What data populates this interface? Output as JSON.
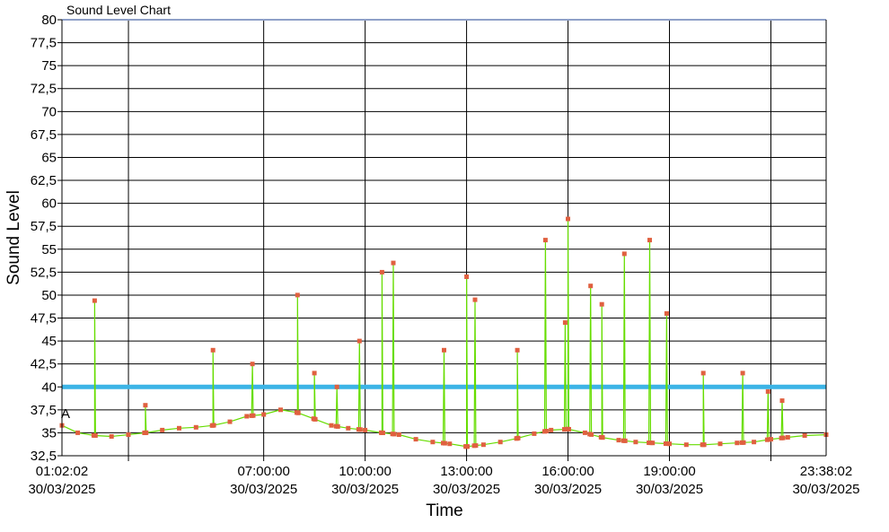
{
  "chart_data": {
    "type": "line",
    "title": "Sound Level Chart",
    "xlabel": "Time",
    "ylabel": "Sound Level",
    "ylim": [
      32.5,
      80
    ],
    "y_ticks": [
      "32,5",
      "35",
      "37,5",
      "40",
      "42,5",
      "45",
      "47,5",
      "50",
      "52,5",
      "55",
      "57,5",
      "60",
      "62,5",
      "65",
      "67,5",
      "70",
      "72,5",
      "75",
      "77,5",
      "80"
    ],
    "x_range": [
      "30/03/2025 01:02:02",
      "30/03/2025 23:38:02"
    ],
    "x_ticks": [
      {
        "time": "01:02:02",
        "date": "30/03/2025"
      },
      {
        "time": "07:00:00",
        "date": "30/03/2025"
      },
      {
        "time": "10:00:00",
        "date": "30/03/2025"
      },
      {
        "time": "13:00:00",
        "date": "30/03/2025"
      },
      {
        "time": "16:00:00",
        "date": "30/03/2025"
      },
      {
        "time": "19:00:00",
        "date": "30/03/2025"
      },
      {
        "time": "23:38:02",
        "date": "30/03/2025"
      }
    ],
    "grid": true,
    "threshold": {
      "value": 40,
      "color": "#3cb4e6"
    },
    "marker_label": "A",
    "series": [
      {
        "color_line": "#66dd00",
        "color_marker": "#e06040",
        "x": [
          "01:02",
          "01:30",
          "02:00",
          "02:30",
          "03:00",
          "03:30",
          "04:00",
          "04:30",
          "05:00",
          "05:30",
          "06:00",
          "06:30",
          "07:00",
          "07:30",
          "08:00",
          "08:30",
          "09:00",
          "09:30",
          "10:00",
          "10:30",
          "11:00",
          "11:30",
          "12:00",
          "12:30",
          "13:00",
          "13:30",
          "14:00",
          "14:30",
          "15:00",
          "15:30",
          "16:00",
          "16:30",
          "17:00",
          "17:30",
          "18:00",
          "18:30",
          "19:00",
          "19:30",
          "20:00",
          "20:30",
          "21:00",
          "21:30",
          "22:00",
          "22:30",
          "23:00",
          "23:38"
        ],
        "y": [
          35.8,
          35.0,
          34.7,
          34.6,
          34.8,
          35.0,
          35.3,
          35.5,
          35.6,
          35.8,
          36.2,
          36.8,
          37.0,
          37.5,
          37.2,
          36.5,
          35.8,
          35.5,
          35.3,
          35.0,
          34.8,
          34.3,
          34.0,
          33.8,
          33.5,
          33.7,
          34.0,
          34.4,
          34.9,
          35.3,
          35.4,
          35.0,
          34.5,
          34.2,
          34.0,
          33.9,
          33.8,
          33.7,
          33.7,
          33.8,
          33.9,
          34.0,
          34.3,
          34.5,
          34.7,
          34.8
        ],
        "spikes": [
          {
            "x": "02:00",
            "y": 49.4
          },
          {
            "x": "03:30",
            "y": 38.0
          },
          {
            "x": "05:30",
            "y": 44.0
          },
          {
            "x": "06:40",
            "y": 42.5
          },
          {
            "x": "08:00",
            "y": 50.0
          },
          {
            "x": "08:30",
            "y": 41.5
          },
          {
            "x": "09:10",
            "y": 40.0
          },
          {
            "x": "09:50",
            "y": 45.0
          },
          {
            "x": "10:30",
            "y": 52.5
          },
          {
            "x": "10:50",
            "y": 53.5
          },
          {
            "x": "12:20",
            "y": 44.0
          },
          {
            "x": "13:00",
            "y": 52.0
          },
          {
            "x": "13:15",
            "y": 49.5
          },
          {
            "x": "14:30",
            "y": 44.0
          },
          {
            "x": "15:20",
            "y": 56.0
          },
          {
            "x": "15:55",
            "y": 47.0
          },
          {
            "x": "16:00",
            "y": 58.3
          },
          {
            "x": "16:40",
            "y": 51.0
          },
          {
            "x": "17:00",
            "y": 49.0
          },
          {
            "x": "17:40",
            "y": 54.5
          },
          {
            "x": "18:25",
            "y": 56.0
          },
          {
            "x": "18:55",
            "y": 48.0
          },
          {
            "x": "20:00",
            "y": 41.5
          },
          {
            "x": "21:10",
            "y": 41.5
          },
          {
            "x": "21:55",
            "y": 39.5
          },
          {
            "x": "22:20",
            "y": 38.5
          }
        ]
      }
    ]
  }
}
